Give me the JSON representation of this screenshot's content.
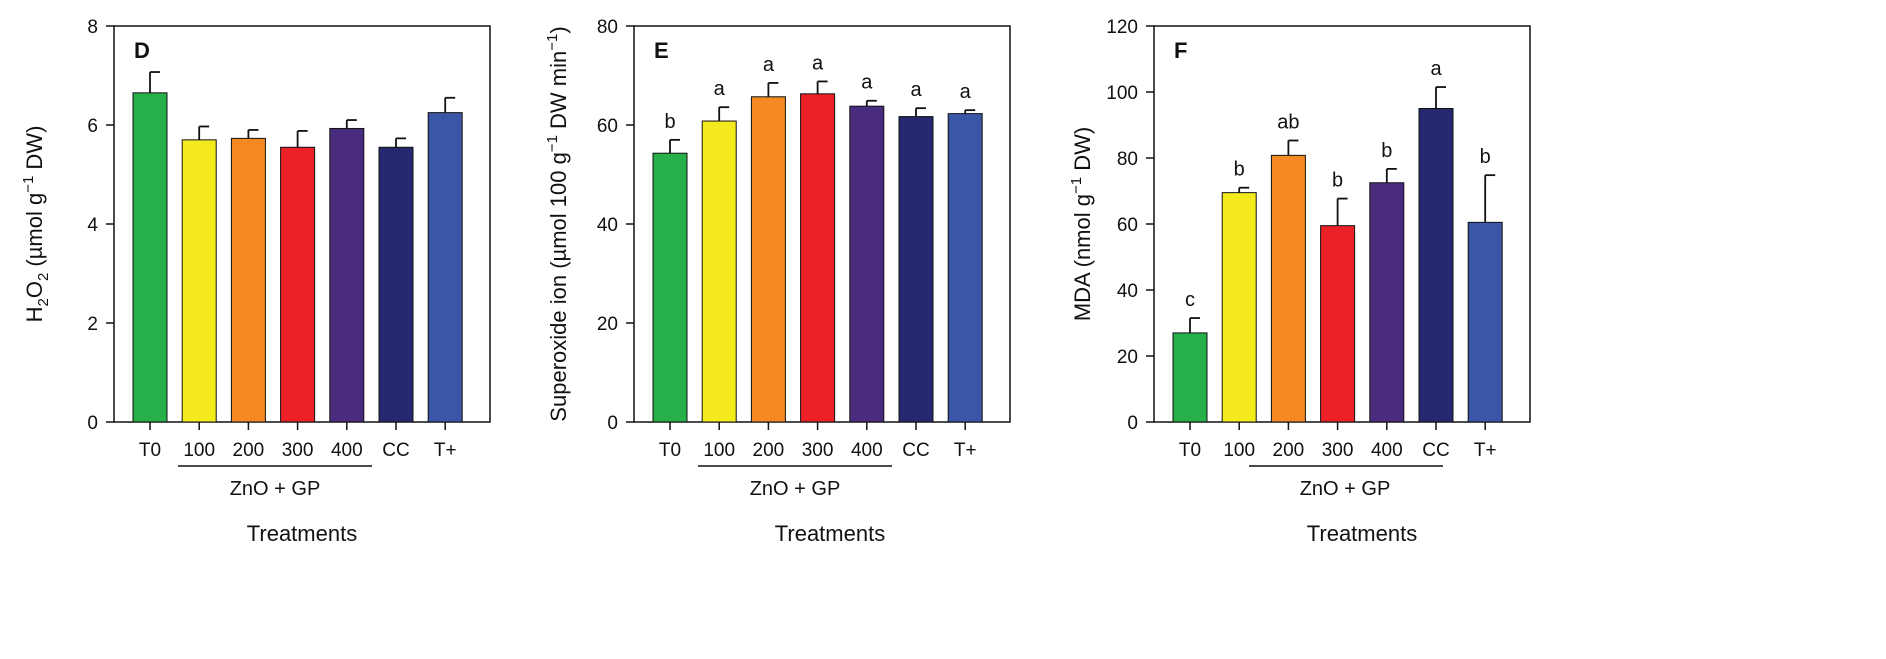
{
  "chart_data": [
    {
      "type": "bar",
      "panel": "D",
      "categories": [
        "T0",
        "100",
        "200",
        "300",
        "400",
        "CC",
        "T+"
      ],
      "values": [
        6.65,
        5.7,
        5.73,
        5.55,
        5.93,
        5.55,
        6.25
      ],
      "errors": [
        0.42,
        0.27,
        0.17,
        0.33,
        0.17,
        0.18,
        0.3
      ],
      "significance": [],
      "colors": [
        "#27b04a",
        "#f4ea1e",
        "#f58a22",
        "#ec2127",
        "#4a2c7e",
        "#25286e",
        "#3b56a6"
      ],
      "ylabel_main": "H",
      "ylabel_sub": "2",
      "ylabel_main2": "O",
      "ylabel_sub2": "2",
      "ylabel_rest1": " (µmol g",
      "ylabel_sup1": "−1",
      "ylabel_rest2": " DW)",
      "xlabel": "Treatments",
      "group_label": "ZnO + GP",
      "ylim": [
        0,
        8
      ],
      "yticks": [
        0,
        2,
        4,
        6,
        8
      ]
    },
    {
      "type": "bar",
      "panel": "E",
      "categories": [
        "T0",
        "100",
        "200",
        "300",
        "400",
        "CC",
        "T+"
      ],
      "values": [
        54.3,
        60.8,
        65.7,
        66.3,
        63.8,
        61.7,
        62.3
      ],
      "errors": [
        2.7,
        2.8,
        2.8,
        2.5,
        1.1,
        1.7,
        0.7
      ],
      "significance": [
        "b",
        "a",
        "a",
        "a",
        "a",
        "a",
        "a"
      ],
      "colors": [
        "#27b04a",
        "#f4ea1e",
        "#f58a22",
        "#ec2127",
        "#4a2c7e",
        "#25286e",
        "#3b56a6"
      ],
      "ylabel_main": "Superoxide ion (µmol 100 g",
      "ylabel_sup1": "−1",
      "ylabel_rest1": " DW min",
      "ylabel_sup2": "−1",
      "ylabel_rest2": ")",
      "xlabel": "Treatments",
      "group_label": "ZnO + GP",
      "ylim": [
        0,
        80
      ],
      "yticks": [
        0,
        20,
        40,
        60,
        80
      ]
    },
    {
      "type": "bar",
      "panel": "F",
      "categories": [
        "T0",
        "100",
        "200",
        "300",
        "400",
        "CC",
        "T+"
      ],
      "values": [
        27,
        69.5,
        80.8,
        59.5,
        72.5,
        95,
        60.5
      ],
      "errors": [
        4.5,
        1.5,
        4.5,
        8.2,
        4.2,
        6.5,
        14.3
      ],
      "significance": [
        "c",
        "b",
        "ab",
        "b",
        "b",
        "a",
        "b"
      ],
      "colors": [
        "#27b04a",
        "#f4ea1e",
        "#f58a22",
        "#ec2127",
        "#4a2c7e",
        "#25286e",
        "#3b56a6"
      ],
      "ylabel_main": "MDA (nmol g",
      "ylabel_sup1": "−1",
      "ylabel_rest1": " DW)",
      "xlabel": "Treatments",
      "group_label": "ZnO + GP",
      "ylim": [
        0,
        120
      ],
      "yticks": [
        0,
        20,
        40,
        60,
        80,
        100,
        120
      ]
    }
  ]
}
